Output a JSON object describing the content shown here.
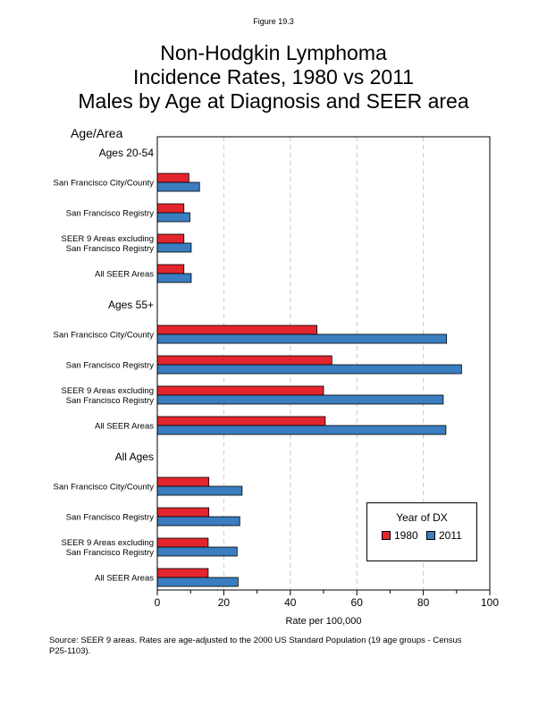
{
  "figure_label": "Figure 19.3",
  "title_lines": [
    "Non-Hodgkin Lymphoma",
    "Incidence Rates, 1980 vs 2011",
    "Males by Age at Diagnosis and SEER area"
  ],
  "yaxis_title": "Age/Area",
  "xlabel": "Rate per 100,000",
  "source": "Source: SEER 9 areas. Rates are age-adjusted to the 2000 US Standard Population (19 age groups - Census P25-1103).",
  "legend": {
    "title": "Year of DX",
    "items": [
      {
        "label": "1980",
        "color": "#e3262d"
      },
      {
        "label": "2011",
        "color": "#3a7dc0"
      }
    ]
  },
  "chart_data": {
    "type": "bar",
    "orientation": "horizontal",
    "title": "Non-Hodgkin Lymphoma Incidence Rates, 1980 vs 2011 Males by Age at Diagnosis and SEER area",
    "xlabel": "Rate per 100,000",
    "ylabel": "Age/Area",
    "xlim": [
      0,
      100
    ],
    "xticks": [
      0,
      20,
      40,
      60,
      80,
      100
    ],
    "grid": "vertical dashed",
    "legend_position": "bottom-right",
    "series": [
      {
        "name": "1980",
        "color": "#e3262d"
      },
      {
        "name": "2011",
        "color": "#3a7dc0"
      }
    ],
    "groups": [
      {
        "label": "Ages 20-54",
        "rows": [
          {
            "label": [
              "San Francisco City/County"
            ],
            "values": [
              9.5,
              12.7
            ]
          },
          {
            "label": [
              "San Francisco Registry"
            ],
            "values": [
              8.0,
              9.8
            ]
          },
          {
            "label": [
              "SEER 9 Areas excluding",
              "San Francisco Registry"
            ],
            "values": [
              8.0,
              10.2
            ]
          },
          {
            "label": [
              "All SEER Areas"
            ],
            "values": [
              8.0,
              10.2
            ]
          }
        ]
      },
      {
        "label": "Ages 55+",
        "rows": [
          {
            "label": [
              "San Francisco City/County"
            ],
            "values": [
              48.0,
              87.0
            ]
          },
          {
            "label": [
              "San Francisco Registry"
            ],
            "values": [
              52.5,
              91.5
            ]
          },
          {
            "label": [
              "SEER 9 Areas excluding",
              "San Francisco Registry"
            ],
            "values": [
              50.0,
              86.0
            ]
          },
          {
            "label": [
              "All SEER Areas"
            ],
            "values": [
              50.5,
              86.8
            ]
          }
        ]
      },
      {
        "label": "All Ages",
        "rows": [
          {
            "label": [
              "San Francisco City/County"
            ],
            "values": [
              15.5,
              25.5
            ]
          },
          {
            "label": [
              "San Francisco Registry"
            ],
            "values": [
              15.5,
              24.8
            ]
          },
          {
            "label": [
              "SEER 9 Areas excluding",
              "San Francisco Registry"
            ],
            "values": [
              15.3,
              24.0
            ]
          },
          {
            "label": [
              "All SEER Areas"
            ],
            "values": [
              15.3,
              24.3
            ]
          }
        ]
      }
    ]
  }
}
